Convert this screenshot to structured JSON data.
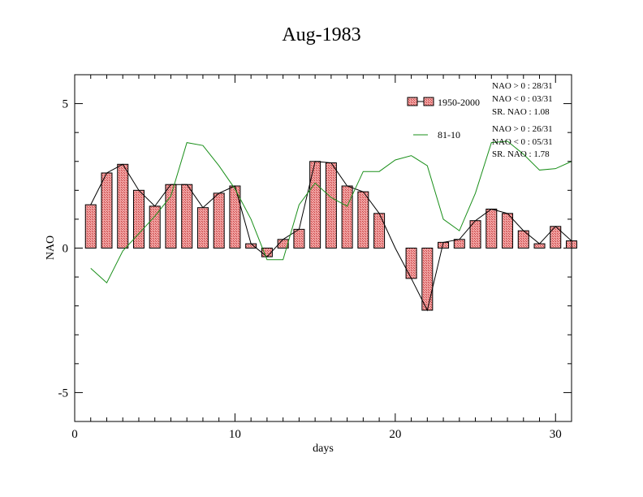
{
  "chart_data": {
    "type": "bar",
    "title": "Aug-1983",
    "xlabel": "days",
    "ylabel": "NAO",
    "xlim": [
      0,
      31
    ],
    "ylim": [
      -6,
      6
    ],
    "x_ticks": [
      0,
      10,
      20,
      30
    ],
    "y_ticks": [
      -5,
      0,
      5
    ],
    "grid": false,
    "legend_position": "top-right",
    "days": [
      1,
      2,
      3,
      4,
      5,
      6,
      7,
      8,
      9,
      10,
      11,
      12,
      13,
      14,
      15,
      16,
      17,
      18,
      19,
      20,
      21,
      22,
      23,
      24,
      25,
      26,
      27,
      28,
      29,
      30,
      31
    ],
    "series": [
      {
        "name": "1950-2000",
        "style": "bars-with-line",
        "bar_color": "#e8706e",
        "line_color": "#000000",
        "values": [
          1.5,
          2.6,
          2.9,
          2.0,
          1.45,
          2.2,
          2.2,
          1.4,
          1.9,
          2.15,
          0.15,
          -0.3,
          0.3,
          0.65,
          3.0,
          2.95,
          2.15,
          1.95,
          1.2,
          0.0,
          -1.05,
          -2.15,
          0.2,
          0.3,
          0.95,
          1.35,
          1.2,
          0.6,
          0.15,
          0.75,
          0.25
        ]
      },
      {
        "name": "81-10",
        "style": "line",
        "line_color": "#1a8f1a",
        "values": [
          -0.7,
          -1.2,
          -0.1,
          0.5,
          1.1,
          1.8,
          3.65,
          3.55,
          2.85,
          2.05,
          1.0,
          -0.4,
          -0.4,
          1.5,
          2.25,
          1.75,
          1.45,
          2.65,
          2.65,
          3.05,
          3.2,
          2.85,
          1.0,
          0.6,
          1.9,
          3.65,
          3.7,
          3.25,
          2.7,
          2.75,
          3.0
        ]
      }
    ],
    "stats": [
      {
        "series": "1950-2000",
        "lines": [
          "NAO > 0 : 28/31",
          "NAO < 0 : 03/31",
          "SR. NAO :  1.08"
        ]
      },
      {
        "series": "81-10",
        "lines": [
          "NAO > 0 : 26/31",
          "NAO < 0 : 05/31",
          "SR. NAO :  1.78"
        ]
      }
    ]
  }
}
